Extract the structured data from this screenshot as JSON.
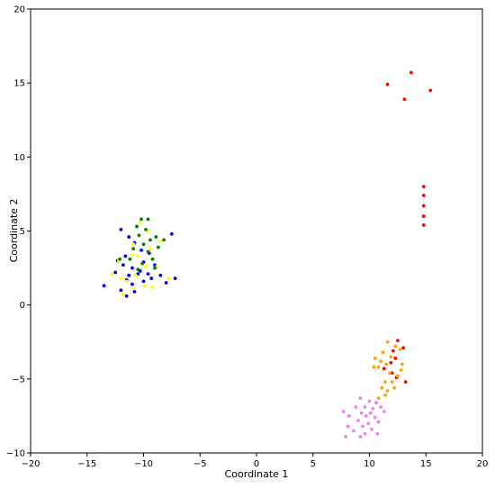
{
  "chart_data": {
    "type": "scatter",
    "title": "",
    "xlabel": "Coordinate 1",
    "ylabel": "Coordinate 2",
    "xlim": [
      -20,
      20
    ],
    "ylim": [
      -10,
      20
    ],
    "xticks": [
      "−20",
      "−15",
      "−10",
      "−5",
      "0",
      "5",
      "10",
      "15",
      "20"
    ],
    "yticks": [
      "−10",
      "−5",
      "0",
      "5",
      "10",
      "15",
      "20"
    ],
    "grid": false,
    "legend": "none",
    "series": [
      {
        "color": "#0000ff",
        "points": [
          [
            -12.0,
            5.1
          ],
          [
            -11.3,
            4.6
          ],
          [
            -10.8,
            4.2
          ],
          [
            -12.3,
            3.0
          ],
          [
            -11.8,
            2.7
          ],
          [
            -11.0,
            2.5
          ],
          [
            -10.3,
            2.3
          ],
          [
            -9.6,
            2.1
          ],
          [
            -9.0,
            2.7
          ],
          [
            -8.5,
            2.0
          ],
          [
            -11.5,
            1.7
          ],
          [
            -11.0,
            1.4
          ],
          [
            -10.5,
            2.1
          ],
          [
            -10.0,
            1.6
          ],
          [
            -10.8,
            0.9
          ],
          [
            -11.5,
            0.6
          ],
          [
            -12.5,
            2.2
          ],
          [
            -13.5,
            1.3
          ],
          [
            -12.0,
            1.0
          ],
          [
            -9.3,
            1.8
          ],
          [
            -8.0,
            1.5
          ],
          [
            -7.2,
            1.8
          ],
          [
            -7.5,
            4.8
          ],
          [
            -10.2,
            3.7
          ],
          [
            -9.5,
            3.5
          ],
          [
            -11.6,
            3.3
          ],
          [
            -10.0,
            2.9
          ],
          [
            -11.3,
            2.0
          ]
        ]
      },
      {
        "color": "#ffff00",
        "points": [
          [
            -10.3,
            5.6
          ],
          [
            -9.6,
            5.0
          ],
          [
            -10.9,
            4.1
          ],
          [
            -12.2,
            3.0
          ],
          [
            -10.5,
            3.3
          ],
          [
            -9.8,
            2.6
          ],
          [
            -12.8,
            2.1
          ],
          [
            -11.5,
            1.6
          ],
          [
            -10.9,
            1.1
          ],
          [
            -11.8,
            0.7
          ],
          [
            -9.2,
            1.2
          ],
          [
            -8.8,
            2.6
          ],
          [
            -7.8,
            1.8
          ],
          [
            -12.0,
            1.8
          ],
          [
            -9.9,
            1.3
          ],
          [
            -10.2,
            2.8
          ],
          [
            -8.5,
            4.3
          ],
          [
            -11.0,
            3.4
          ],
          [
            -9.4,
            3.8
          ],
          [
            -10.7,
            2.0
          ]
        ]
      },
      {
        "color": "#008000",
        "points": [
          [
            -10.2,
            5.8
          ],
          [
            -9.6,
            5.8
          ],
          [
            -10.6,
            5.3
          ],
          [
            -9.8,
            5.1
          ],
          [
            -10.4,
            4.7
          ],
          [
            -9.4,
            4.4
          ],
          [
            -8.9,
            4.6
          ],
          [
            -8.2,
            4.4
          ],
          [
            -10.0,
            4.1
          ],
          [
            -10.9,
            3.8
          ],
          [
            -9.6,
            3.6
          ],
          [
            -11.2,
            3.1
          ],
          [
            -12.1,
            3.1
          ],
          [
            -10.1,
            2.8
          ],
          [
            -9.0,
            2.5
          ],
          [
            -10.5,
            2.4
          ],
          [
            -8.7,
            3.9
          ],
          [
            -9.2,
            3.1
          ]
        ]
      },
      {
        "color": "#ff0000",
        "points": [
          [
            11.6,
            14.9
          ],
          [
            13.1,
            13.9
          ],
          [
            13.7,
            15.7
          ],
          [
            15.4,
            14.5
          ],
          [
            14.8,
            8.0
          ],
          [
            14.8,
            7.4
          ],
          [
            14.8,
            6.7
          ],
          [
            14.8,
            6.0
          ],
          [
            14.8,
            5.4
          ],
          [
            12.5,
            -2.4
          ],
          [
            13.0,
            -2.9
          ],
          [
            12.1,
            -3.1
          ],
          [
            12.3,
            -3.6
          ],
          [
            11.9,
            -3.9
          ],
          [
            11.3,
            -4.3
          ],
          [
            12.0,
            -4.6
          ],
          [
            12.4,
            -4.9
          ],
          [
            13.2,
            -5.2
          ]
        ]
      },
      {
        "color": "#ffa500",
        "points": [
          [
            11.6,
            -2.5
          ],
          [
            12.3,
            -2.8
          ],
          [
            11.2,
            -3.2
          ],
          [
            12.7,
            -3.0
          ],
          [
            10.5,
            -3.6
          ],
          [
            11.9,
            -3.5
          ],
          [
            10.8,
            -4.2
          ],
          [
            11.5,
            -4.0
          ],
          [
            12.9,
            -4.0
          ],
          [
            10.4,
            -4.2
          ],
          [
            11.8,
            -4.6
          ],
          [
            12.5,
            -4.8
          ],
          [
            11.4,
            -5.2
          ],
          [
            11.1,
            -5.6
          ],
          [
            12.2,
            -5.6
          ],
          [
            11.6,
            -5.8
          ],
          [
            10.8,
            -6.3
          ],
          [
            11.4,
            -6.1
          ],
          [
            10.6,
            -6.6
          ],
          [
            12.0,
            -5.2
          ],
          [
            12.8,
            -4.4
          ],
          [
            11.0,
            -3.8
          ]
        ]
      },
      {
        "color": "#ee82ee",
        "points": [
          [
            10.0,
            -6.5
          ],
          [
            9.2,
            -6.3
          ],
          [
            10.6,
            -6.6
          ],
          [
            9.6,
            -6.9
          ],
          [
            10.3,
            -7.0
          ],
          [
            8.8,
            -6.9
          ],
          [
            9.3,
            -7.3
          ],
          [
            10.1,
            -7.3
          ],
          [
            11.3,
            -7.2
          ],
          [
            8.2,
            -7.5
          ],
          [
            9.7,
            -7.5
          ],
          [
            10.5,
            -7.6
          ],
          [
            9.0,
            -7.8
          ],
          [
            9.9,
            -8.0
          ],
          [
            10.8,
            -7.9
          ],
          [
            8.1,
            -8.2
          ],
          [
            9.4,
            -8.2
          ],
          [
            10.2,
            -8.4
          ],
          [
            8.6,
            -8.5
          ],
          [
            9.6,
            -8.7
          ],
          [
            10.7,
            -8.7
          ],
          [
            7.9,
            -8.9
          ],
          [
            9.2,
            -8.9
          ],
          [
            7.7,
            -7.2
          ],
          [
            11.0,
            -6.9
          ]
        ]
      }
    ]
  }
}
